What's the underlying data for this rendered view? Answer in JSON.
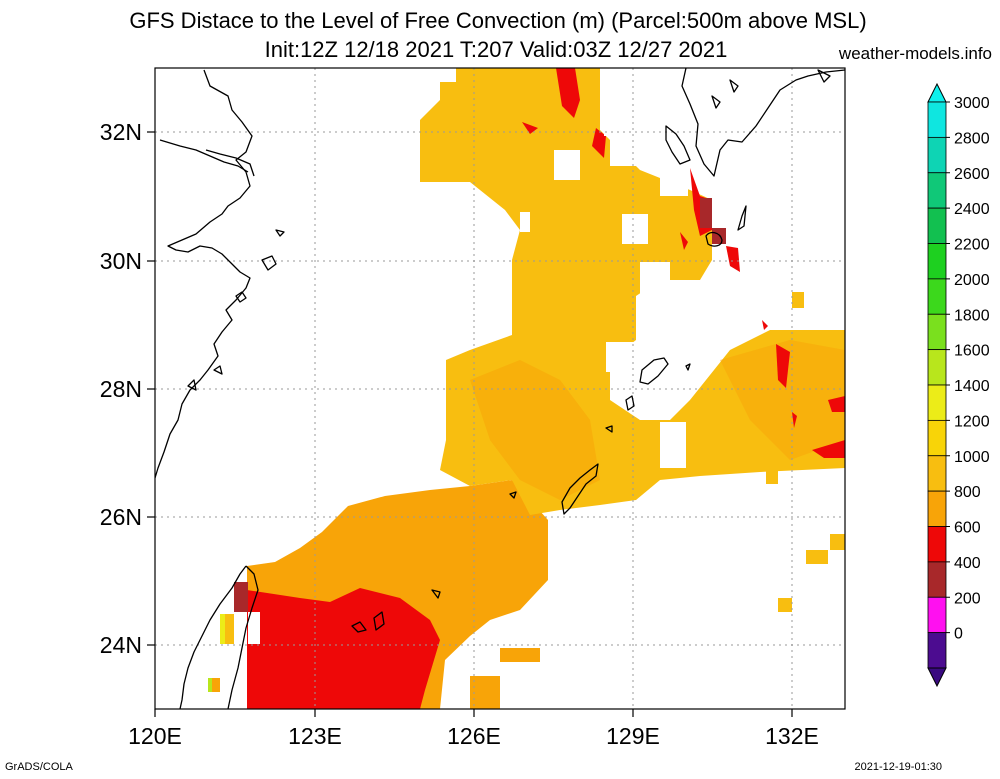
{
  "header": {
    "title_line1": "GFS Distace to the Level of Free Convection (m) (Parcel:500m above MSL)",
    "title_line2": "Init:12Z 12/18 2021 T:207 Valid:03Z 12/27 2021",
    "site": "weather-models.info"
  },
  "footer": {
    "credit": "GrADS/COLA",
    "timestamp": "2021-12-19-01:30"
  },
  "map": {
    "lat_labels": [
      "32N",
      "30N",
      "28N",
      "26N",
      "24N"
    ],
    "lon_labels": [
      "120E",
      "123E",
      "126E",
      "129E",
      "132E"
    ],
    "lon_range": [
      120,
      133
    ],
    "lat_range": [
      23,
      33
    ]
  },
  "colorbar": {
    "labels": [
      "3000",
      "2800",
      "2600",
      "2400",
      "2200",
      "2000",
      "1800",
      "1600",
      "1400",
      "1200",
      "1000",
      "800",
      "600",
      "400",
      "200",
      "0"
    ],
    "colors": [
      "#0fe6e0",
      "#0ed4b4",
      "#10c878",
      "#12c050",
      "#1ed020",
      "#3cd81c",
      "#7ae01e",
      "#b8e61c",
      "#ecec18",
      "#f8d408",
      "#f8be10",
      "#f8a408",
      "#ee0808",
      "#a8282a",
      "#ff10f0",
      "#4c0c90"
    ],
    "top_arrow": "#0ef0ec",
    "bottom_arrow": "#3a0a80"
  }
}
